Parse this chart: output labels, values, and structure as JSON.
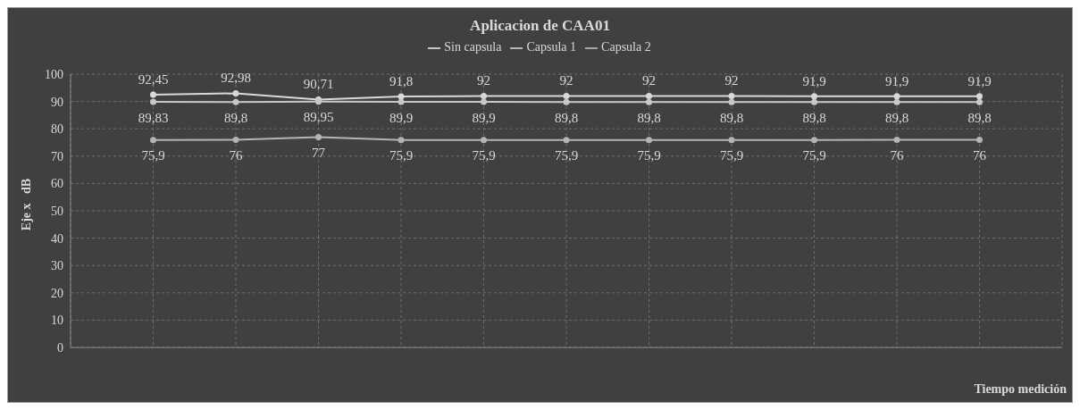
{
  "chart_data": {
    "type": "line",
    "title": "Aplicacion de CAA01",
    "xlabel": "Tiempo medición",
    "ylabel": "Eje x   dB",
    "categories": [
      null,
      null,
      null,
      null,
      null,
      null,
      null,
      null,
      null,
      null,
      null
    ],
    "series": [
      {
        "name": "Sin capsula",
        "color": "#d9d9d9",
        "values": [
          92.45,
          92.98,
          90.71,
          91.8,
          92,
          92,
          92,
          92,
          91.9,
          91.9,
          91.9
        ],
        "value_labels": [
          "92,45",
          "92,98",
          "90,71",
          "91,8",
          "92",
          "92",
          "92",
          "92",
          "91,9",
          "91,9",
          "91,9"
        ]
      },
      {
        "name": "Capsula 1",
        "color": "#c8c8c8",
        "values": [
          89.83,
          89.8,
          89.95,
          89.9,
          89.9,
          89.8,
          89.8,
          89.8,
          89.8,
          89.8,
          89.8
        ],
        "value_labels": [
          "89,83",
          "89,8",
          "89,95",
          "89,9",
          "89,9",
          "89,8",
          "89,8",
          "89,8",
          "89,8",
          "89,8",
          "89,8"
        ]
      },
      {
        "name": "Capsula 2",
        "color": "#b4b4b4",
        "values": [
          75.9,
          76,
          77,
          75.9,
          75.9,
          75.9,
          75.9,
          75.9,
          75.9,
          76,
          76
        ],
        "value_labels": [
          "75,9",
          "76",
          "77",
          "75,9",
          "75,9",
          "75,9",
          "75,9",
          "75,9",
          "75,9",
          "76",
          "76"
        ]
      }
    ],
    "ylim": [
      0,
      100
    ],
    "yticks": [
      0,
      10,
      20,
      30,
      40,
      50,
      60,
      70,
      80,
      90,
      100
    ],
    "grid": true,
    "legend": "top",
    "marker": "circle",
    "line_style": "solid",
    "tick_labels": "y"
  }
}
